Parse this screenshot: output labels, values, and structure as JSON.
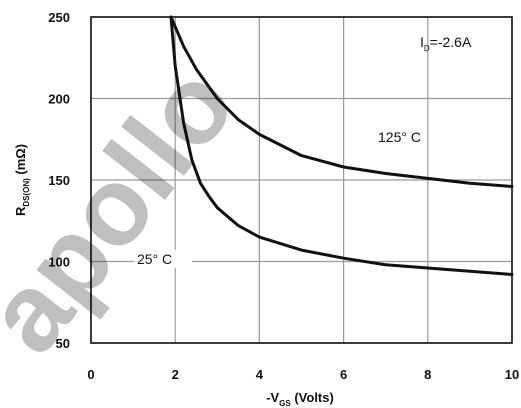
{
  "chart_data": {
    "type": "line",
    "title": "",
    "xlabel_prefix": "-V",
    "xlabel_sub": "GS",
    "xlabel_suffix": " (Volts)",
    "ylabel_prefix": "R",
    "ylabel_sub": "DS(ON)",
    "ylabel_suffix": " (mΩ)",
    "xlim": [
      0,
      10
    ],
    "ylim": [
      50,
      250
    ],
    "x_ticks": [
      "0",
      "2",
      "4",
      "6",
      "8",
      "10"
    ],
    "y_ticks": [
      "50",
      "100",
      "150",
      "200",
      "250"
    ],
    "grid": true,
    "annotation_prefix": "I",
    "annotation_sub": "D",
    "annotation_suffix": "=-2.6A",
    "series": [
      {
        "name": "125° C",
        "x": [
          1.9,
          2.2,
          2.5,
          3.0,
          3.5,
          4.0,
          5.0,
          6.0,
          7.0,
          8.0,
          9.0,
          10.0
        ],
        "y": [
          250,
          232,
          218,
          200,
          187,
          178,
          165,
          158,
          154,
          151,
          148,
          146
        ]
      },
      {
        "name": "25° C",
        "x": [
          1.9,
          2.0,
          2.2,
          2.4,
          2.6,
          2.8,
          3.0,
          3.5,
          4.0,
          5.0,
          6.0,
          7.0,
          8.0,
          9.0,
          10.0
        ],
        "y": [
          250,
          220,
          185,
          162,
          148,
          140,
          133,
          122,
          115,
          107,
          102,
          98,
          96,
          94,
          92
        ]
      }
    ],
    "line_color": "#111111",
    "grid_color": "#9a9a9a",
    "watermark_text": "apollo"
  }
}
